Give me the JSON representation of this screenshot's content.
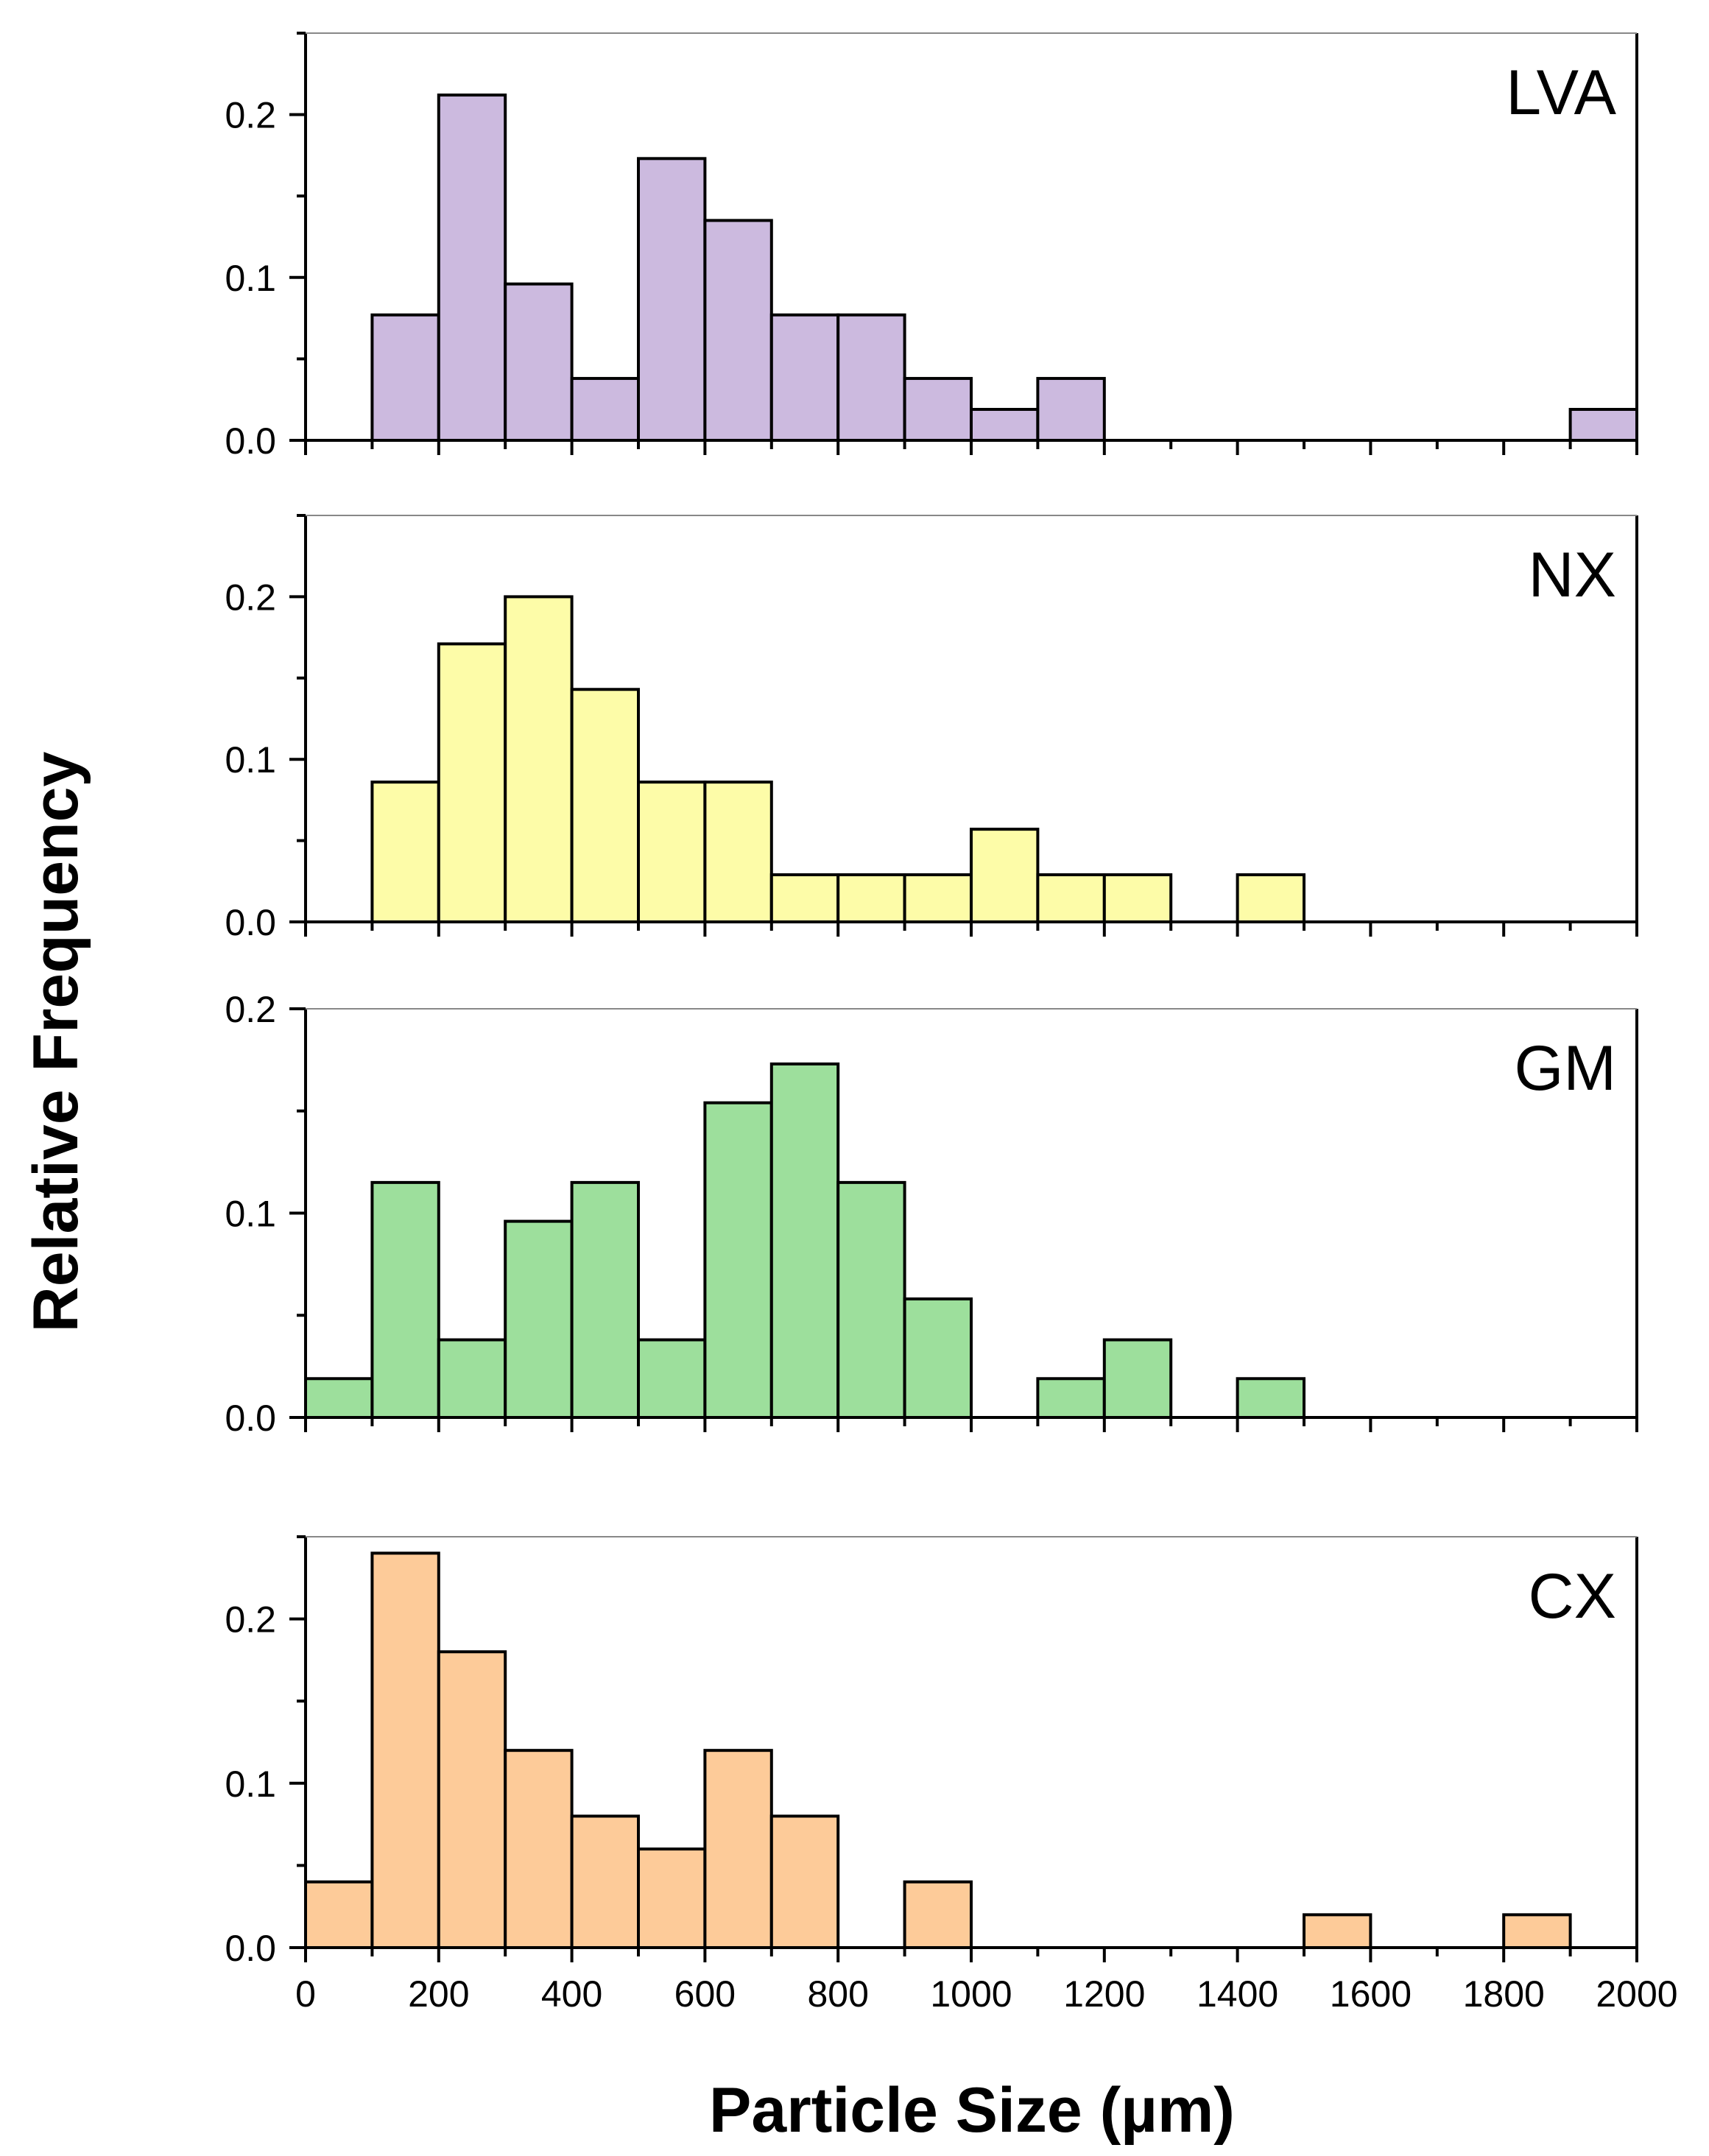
{
  "chart_data": {
    "type": "bar",
    "subtype": "histogram",
    "layout": "stacked-panels",
    "bin_width": 100,
    "shared_xlabel": "Particle Size (µm)",
    "shared_ylabel": "Relative Frequency",
    "xlim": [
      0,
      2000
    ],
    "x_ticks": [
      "0",
      "200",
      "400",
      "600",
      "800",
      "1000",
      "1200",
      "1400",
      "1600",
      "1800",
      "2000"
    ],
    "panels": [
      {
        "name": "LVA",
        "label": "LVA",
        "color": "#ccbadf",
        "ylim": [
          0,
          0.25
        ],
        "y_ticks": [
          "0.0",
          "0.1",
          "0.2"
        ],
        "bins": [
          {
            "start": 100,
            "value": 0.077
          },
          {
            "start": 200,
            "value": 0.212
          },
          {
            "start": 300,
            "value": 0.096
          },
          {
            "start": 400,
            "value": 0.038
          },
          {
            "start": 500,
            "value": 0.173
          },
          {
            "start": 600,
            "value": 0.135
          },
          {
            "start": 700,
            "value": 0.077
          },
          {
            "start": 800,
            "value": 0.077
          },
          {
            "start": 900,
            "value": 0.038
          },
          {
            "start": 1000,
            "value": 0.019
          },
          {
            "start": 1100,
            "value": 0.038
          },
          {
            "start": 1900,
            "value": 0.019
          }
        ]
      },
      {
        "name": "NX",
        "label": "NX",
        "color": "#fdfca8",
        "ylim": [
          0,
          0.25
        ],
        "y_ticks": [
          "0.0",
          "0.1",
          "0.2"
        ],
        "bins": [
          {
            "start": 100,
            "value": 0.086
          },
          {
            "start": 200,
            "value": 0.171
          },
          {
            "start": 300,
            "value": 0.2
          },
          {
            "start": 400,
            "value": 0.143
          },
          {
            "start": 500,
            "value": 0.086
          },
          {
            "start": 600,
            "value": 0.086
          },
          {
            "start": 700,
            "value": 0.029
          },
          {
            "start": 800,
            "value": 0.029
          },
          {
            "start": 900,
            "value": 0.029
          },
          {
            "start": 1000,
            "value": 0.057
          },
          {
            "start": 1100,
            "value": 0.029
          },
          {
            "start": 1200,
            "value": 0.029
          },
          {
            "start": 1400,
            "value": 0.029
          }
        ]
      },
      {
        "name": "GM",
        "label": "GM",
        "color": "#9ddf9c",
        "ylim": [
          0,
          0.2
        ],
        "y_ticks": [
          "0.0",
          "0.1",
          "0.2"
        ],
        "bins": [
          {
            "start": 0,
            "value": 0.019
          },
          {
            "start": 100,
            "value": 0.115
          },
          {
            "start": 200,
            "value": 0.038
          },
          {
            "start": 300,
            "value": 0.096
          },
          {
            "start": 400,
            "value": 0.115
          },
          {
            "start": 500,
            "value": 0.038
          },
          {
            "start": 600,
            "value": 0.154
          },
          {
            "start": 700,
            "value": 0.173
          },
          {
            "start": 800,
            "value": 0.115
          },
          {
            "start": 900,
            "value": 0.058
          },
          {
            "start": 1100,
            "value": 0.019
          },
          {
            "start": 1200,
            "value": 0.038
          },
          {
            "start": 1400,
            "value": 0.019
          }
        ]
      },
      {
        "name": "CX",
        "label": "CX",
        "color": "#fdcb99",
        "ylim": [
          0,
          0.25
        ],
        "y_ticks": [
          "0.0",
          "0.1",
          "0.2"
        ],
        "bins": [
          {
            "start": 0,
            "value": 0.04
          },
          {
            "start": 100,
            "value": 0.24
          },
          {
            "start": 200,
            "value": 0.18
          },
          {
            "start": 300,
            "value": 0.12
          },
          {
            "start": 400,
            "value": 0.08
          },
          {
            "start": 500,
            "value": 0.06
          },
          {
            "start": 600,
            "value": 0.12
          },
          {
            "start": 700,
            "value": 0.08
          },
          {
            "start": 900,
            "value": 0.04
          },
          {
            "start": 1500,
            "value": 0.02
          },
          {
            "start": 1800,
            "value": 0.02
          }
        ]
      }
    ]
  }
}
